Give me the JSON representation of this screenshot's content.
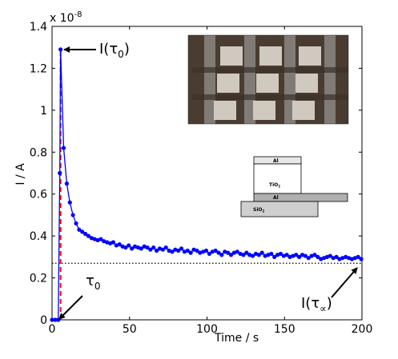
{
  "chart_data": {
    "type": "line",
    "title": "",
    "xlabel": "Time / s",
    "ylabel": "I / A",
    "exponent_label": "x 10",
    "exponent_power": "-8",
    "xlim": [
      0,
      200
    ],
    "ylim": [
      0,
      1.4
    ],
    "xticks": [
      0,
      50,
      100,
      150,
      200
    ],
    "yticks": [
      0,
      0.2,
      0.4,
      0.6,
      0.8,
      1,
      1.2,
      1.4
    ],
    "grid": false,
    "series": [
      {
        "color": "#0000ff",
        "x": [
          0,
          2,
          4,
          5,
          5.5,
          7.5,
          9.5,
          11.5,
          13.5,
          15.5,
          17.5,
          19.5,
          21.5,
          23.5,
          25.5,
          27.5,
          29.5,
          31.5,
          33.5,
          35.5,
          37.5,
          39.5,
          41.5,
          43.5,
          45.5,
          47.5,
          49.5,
          51.5,
          53.5,
          55.5,
          57.5,
          59.5,
          61.5,
          63.5,
          65.5,
          67.5,
          69.5,
          71.5,
          73.5,
          75.5,
          77.5,
          79.5,
          81.5,
          83.5,
          85.5,
          87.5,
          89.5,
          91.5,
          93.5,
          95.5,
          97.5,
          99.5,
          101.5,
          103.5,
          105.5,
          107.5,
          109.5,
          111.5,
          113.5,
          115.5,
          117.5,
          119.5,
          121.5,
          123.5,
          125.5,
          127.5,
          129.5,
          131.5,
          133.5,
          135.5,
          137.5,
          139.5,
          141.5,
          143.5,
          145.5,
          147.5,
          149.5,
          151.5,
          153.5,
          155.5,
          157.5,
          159.5,
          161.5,
          163.5,
          165.5,
          167.5,
          169.5,
          171.5,
          173.5,
          175.5,
          177.5,
          179.5,
          181.5,
          183.5,
          185.5,
          187.5,
          189.5,
          191.5,
          193.5,
          195.5,
          197.5,
          199.5
        ],
        "y": [
          0,
          0,
          0,
          0.7,
          1.29,
          0.82,
          0.65,
          0.56,
          0.5,
          0.46,
          0.43,
          0.42,
          0.41,
          0.4,
          0.39,
          0.385,
          0.38,
          0.385,
          0.375,
          0.37,
          0.365,
          0.37,
          0.355,
          0.36,
          0.35,
          0.345,
          0.355,
          0.34,
          0.35,
          0.345,
          0.34,
          0.35,
          0.345,
          0.335,
          0.345,
          0.33,
          0.34,
          0.335,
          0.345,
          0.33,
          0.325,
          0.335,
          0.33,
          0.34,
          0.325,
          0.33,
          0.32,
          0.335,
          0.33,
          0.32,
          0.325,
          0.33,
          0.315,
          0.325,
          0.33,
          0.32,
          0.31,
          0.325,
          0.32,
          0.31,
          0.32,
          0.325,
          0.315,
          0.31,
          0.32,
          0.31,
          0.305,
          0.315,
          0.31,
          0.32,
          0.305,
          0.31,
          0.315,
          0.3,
          0.31,
          0.315,
          0.305,
          0.31,
          0.3,
          0.305,
          0.31,
          0.3,
          0.31,
          0.305,
          0.295,
          0.305,
          0.31,
          0.3,
          0.29,
          0.295,
          0.3,
          0.305,
          0.295,
          0.3,
          0.29,
          0.295,
          0.3,
          0.295,
          0.29,
          0.295,
          0.3,
          0.29
        ]
      }
    ],
    "reference_lines": [
      {
        "type": "horizontal",
        "y": 0.27,
        "style": "dotted",
        "color": "#000000"
      },
      {
        "type": "vertical",
        "x": 5.5,
        "style": "dashed",
        "color": "#ff0000"
      }
    ],
    "annotations": [
      {
        "id": "i-tau0",
        "base": "I(τ",
        "sub": "0",
        "close": ")",
        "arrow_to": [
          5.5,
          1.29
        ]
      },
      {
        "id": "tau0",
        "base": "τ",
        "sub": "0",
        "close": "",
        "arrow_to": [
          4,
          0
        ]
      },
      {
        "id": "i-tau-inf",
        "base": "I(τ",
        "sub": "∝",
        "close": ")",
        "arrow_to": [
          199,
          0.36
        ]
      }
    ],
    "inset_diagram": {
      "layers": [
        {
          "label": "Al",
          "fill": "#e8e8e8"
        },
        {
          "label": "TiO",
          "sub": "2",
          "fill": "#ffffff"
        },
        {
          "label": "Al",
          "fill": "#b0b0b0"
        },
        {
          "label": "SiO",
          "sub": "2",
          "fill": "#cfcfcf"
        }
      ]
    },
    "inset_photo_colors": [
      "#5b4a3a",
      "#8a8682",
      "#3a3028",
      "#cfc9c0"
    ]
  }
}
